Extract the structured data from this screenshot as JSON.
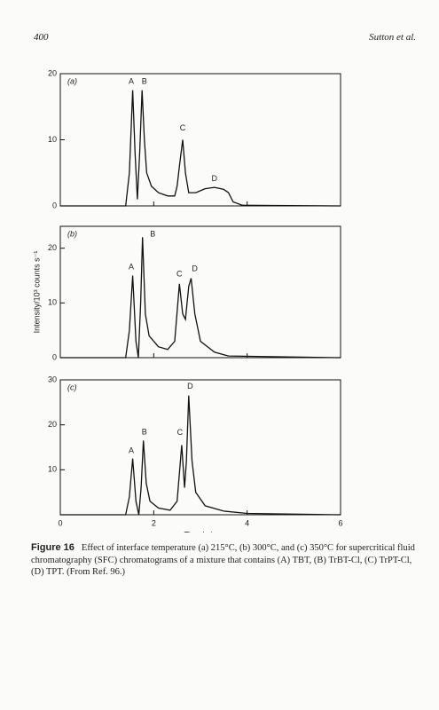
{
  "header": {
    "page": "400",
    "author": "Sutton et al."
  },
  "chart_data": [
    {
      "type": "line",
      "panel_label": "(a)",
      "xlim": [
        0,
        6
      ],
      "xticks": [
        0,
        2,
        4,
        6
      ],
      "ylim": [
        0,
        20
      ],
      "yticks": [
        0,
        10,
        20
      ],
      "x": [
        0,
        1.4,
        1.48,
        1.55,
        1.6,
        1.65,
        1.7,
        1.75,
        1.8,
        1.85,
        1.95,
        2.1,
        2.3,
        2.45,
        2.5,
        2.55,
        2.62,
        2.68,
        2.75,
        2.9,
        3.1,
        3.3,
        3.5,
        3.6,
        3.7,
        3.9,
        6
      ],
      "values": [
        0,
        0,
        5,
        17.5,
        8,
        1,
        8,
        17.5,
        10,
        5,
        3,
        2,
        1.5,
        1.5,
        3,
        6,
        10,
        5,
        2,
        2,
        2.6,
        2.8,
        2.5,
        2,
        0.6,
        0.1,
        0
      ],
      "annotations": [
        {
          "text": "A",
          "x": 1.52,
          "y": 18.8
        },
        {
          "text": "B",
          "x": 1.8,
          "y": 18.8
        },
        {
          "text": "C",
          "x": 2.62,
          "y": 11.7
        },
        {
          "text": "D",
          "x": 3.3,
          "y": 4.1
        }
      ]
    },
    {
      "type": "line",
      "panel_label": "(b)",
      "xlim": [
        0,
        6
      ],
      "xticks": [
        0,
        2,
        4,
        6
      ],
      "ylim": [
        0,
        24
      ],
      "yticks": [
        0,
        10,
        20
      ],
      "ylabel": "Intensity/10³ counts s⁻¹",
      "x": [
        0,
        1.4,
        1.48,
        1.55,
        1.62,
        1.67,
        1.72,
        1.76,
        1.82,
        1.9,
        2.1,
        2.3,
        2.45,
        2.55,
        2.62,
        2.68,
        2.75,
        2.8,
        2.88,
        3,
        3.3,
        3.6,
        6
      ],
      "values": [
        0,
        0,
        5,
        15,
        3,
        0,
        10,
        22,
        8,
        4,
        2,
        1.5,
        3,
        13.5,
        8,
        7,
        13,
        14.5,
        8,
        3,
        1,
        0.3,
        0
      ],
      "annotations": [
        {
          "text": "A",
          "x": 1.52,
          "y": 16.5
        },
        {
          "text": "B",
          "x": 1.98,
          "y": 22.5
        },
        {
          "text": "C",
          "x": 2.55,
          "y": 15.2
        },
        {
          "text": "D",
          "x": 2.88,
          "y": 16.2
        }
      ]
    },
    {
      "type": "line",
      "panel_label": "(c)",
      "xlim": [
        0,
        6
      ],
      "xticks": [
        0,
        2,
        4,
        6
      ],
      "ylim": [
        0,
        30
      ],
      "yticks": [
        10,
        20,
        30
      ],
      "xlabel": "Time/min",
      "x": [
        0,
        1.4,
        1.48,
        1.55,
        1.62,
        1.68,
        1.73,
        1.78,
        1.84,
        1.92,
        2.1,
        2.35,
        2.5,
        2.6,
        2.66,
        2.7,
        2.75,
        2.82,
        2.9,
        3.1,
        3.5,
        4,
        6
      ],
      "values": [
        0,
        0,
        4,
        12.5,
        3,
        0,
        6,
        16.5,
        7,
        3,
        1.5,
        1,
        3,
        15.5,
        6,
        12,
        26.5,
        12,
        5,
        2,
        0.8,
        0.3,
        0
      ],
      "annotations": [
        {
          "text": "A",
          "x": 1.52,
          "y": 14.2
        },
        {
          "text": "B",
          "x": 1.8,
          "y": 18.3
        },
        {
          "text": "C",
          "x": 2.56,
          "y": 18.2
        },
        {
          "text": "D",
          "x": 2.78,
          "y": 28.5
        }
      ]
    }
  ],
  "caption": {
    "label": "Figure 16",
    "text": "Effect of interface temperature (a) 215°C, (b) 300°C, and (c) 350°C for supercritical fluid chromatography (SFC) chromatograms of a mixture that contains (A) TBT, (B) TrBT-Cl, (C) TrPT-Cl, (D) TPT. (From Ref. 96.)"
  }
}
